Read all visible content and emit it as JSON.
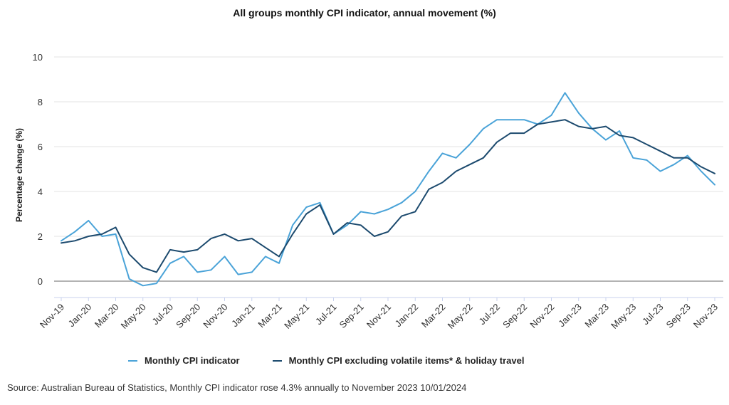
{
  "chart_data": {
    "type": "line",
    "title": "All groups monthly CPI indicator, annual movement (%)",
    "ylabel": "Percentage change (%)",
    "xlabel": "",
    "ylim": [
      -0.7,
      10
    ],
    "yticks": [
      0,
      2,
      4,
      6,
      8,
      10
    ],
    "grid": true,
    "legend_position": "bottom",
    "x": [
      "Nov-19",
      "Dec-19",
      "Jan-20",
      "Feb-20",
      "Mar-20",
      "Apr-20",
      "May-20",
      "Jun-20",
      "Jul-20",
      "Aug-20",
      "Sep-20",
      "Oct-20",
      "Nov-20",
      "Dec-20",
      "Jan-21",
      "Feb-21",
      "Mar-21",
      "Apr-21",
      "May-21",
      "Jun-21",
      "Jul-21",
      "Aug-21",
      "Sep-21",
      "Oct-21",
      "Nov-21",
      "Dec-21",
      "Jan-22",
      "Feb-22",
      "Mar-22",
      "Apr-22",
      "May-22",
      "Jun-22",
      "Jul-22",
      "Aug-22",
      "Sep-22",
      "Oct-22",
      "Nov-22",
      "Dec-22",
      "Jan-23",
      "Feb-23",
      "Mar-23",
      "Apr-23",
      "May-23",
      "Jun-23",
      "Jul-23",
      "Aug-23",
      "Sep-23",
      "Oct-23",
      "Nov-23"
    ],
    "x_tick_labels": [
      "Nov-19",
      "Jan-20",
      "Mar-20",
      "May-20",
      "Jul-20",
      "Sep-20",
      "Nov-20",
      "Jan-21",
      "Mar-21",
      "May-21",
      "Jul-21",
      "Sep-21",
      "Nov-21",
      "Jan-22",
      "Mar-22",
      "May-22",
      "Jul-22",
      "Sep-22",
      "Nov-22",
      "Jan-23",
      "Mar-23",
      "May-23",
      "Jul-23",
      "Sep-23",
      "Nov-23"
    ],
    "series": [
      {
        "name": "Monthly CPI indicator",
        "color": "#4aa3d8",
        "values": [
          1.8,
          2.2,
          2.7,
          2.0,
          2.1,
          0.1,
          -0.2,
          -0.1,
          0.8,
          1.1,
          0.4,
          0.5,
          1.1,
          0.3,
          0.4,
          1.1,
          0.8,
          2.5,
          3.3,
          3.5,
          2.1,
          2.5,
          3.1,
          3.0,
          3.2,
          3.5,
          4.0,
          4.9,
          5.7,
          5.5,
          6.1,
          6.8,
          7.2,
          7.2,
          7.2,
          7.0,
          7.4,
          8.4,
          7.5,
          6.8,
          6.3,
          6.7,
          5.5,
          5.4,
          4.9,
          5.2,
          5.6,
          4.9,
          4.3
        ]
      },
      {
        "name": "Monthly CPI excluding volatile items* & holiday travel",
        "color": "#1c4a6e",
        "values": [
          1.7,
          1.8,
          2.0,
          2.1,
          2.4,
          1.2,
          0.6,
          0.4,
          1.4,
          1.3,
          1.4,
          1.9,
          2.1,
          1.8,
          1.9,
          1.5,
          1.1,
          2.1,
          3.0,
          3.4,
          2.1,
          2.6,
          2.5,
          2.0,
          2.2,
          2.9,
          3.1,
          4.1,
          4.4,
          4.9,
          5.2,
          5.5,
          6.2,
          6.6,
          6.6,
          7.0,
          7.1,
          7.2,
          6.9,
          6.8,
          6.9,
          6.5,
          6.4,
          6.1,
          5.8,
          5.5,
          5.5,
          5.1,
          4.8
        ]
      }
    ]
  },
  "source": "Source: Australian Bureau of Statistics, Monthly CPI indicator rose 4.3% annually to November 2023 10/01/2024"
}
